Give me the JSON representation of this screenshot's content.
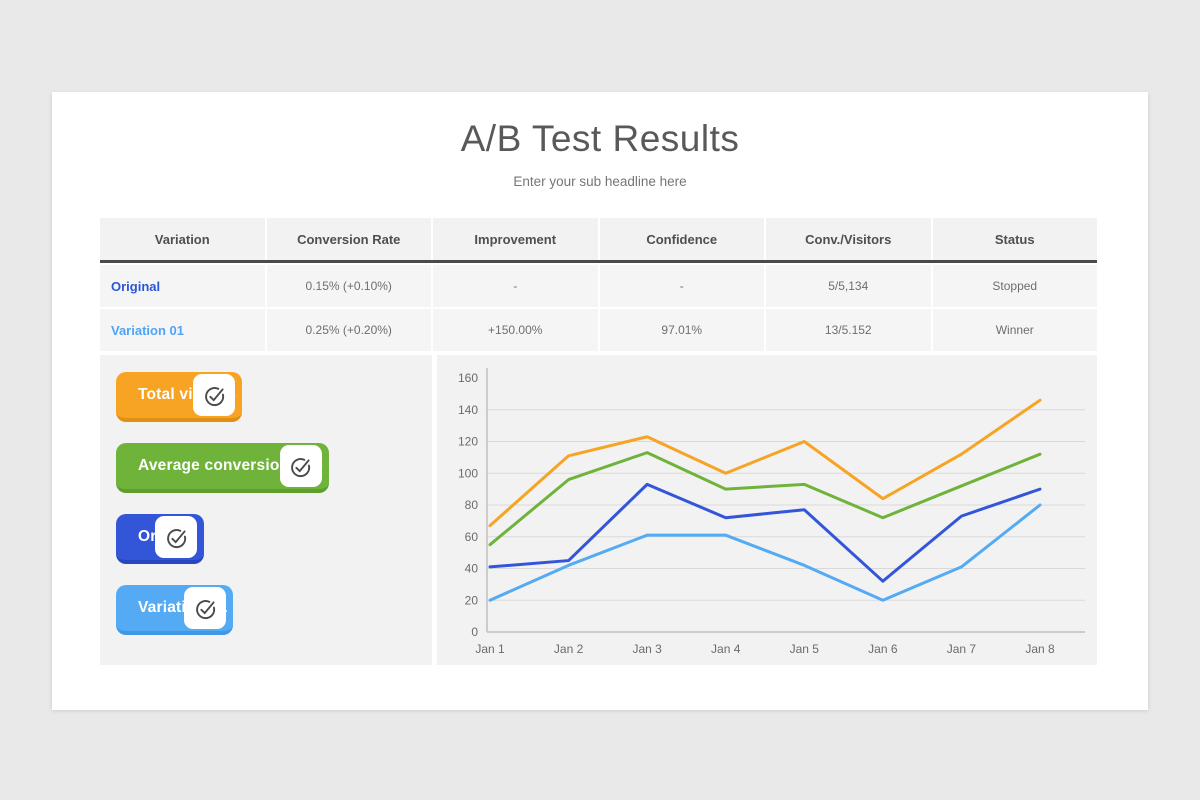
{
  "page": {
    "title": "A/B Test Results",
    "subtitle": "Enter your sub headline here"
  },
  "table": {
    "columns": [
      "Variation",
      "Conversion Rate",
      "Improvement",
      "Confidence",
      "Conv./Visitors",
      "Status"
    ],
    "rows": [
      {
        "variation": "Original",
        "variation_color": "#2b56d8",
        "cells": [
          "0.15% (+0.10%)",
          "-",
          "-",
          "5/5,134",
          "Stopped"
        ]
      },
      {
        "variation": "Variation 01",
        "variation_color": "#4ea5f5",
        "cells": [
          "0.25% (+0.20%)",
          "+150.00%",
          "97.01%",
          "13/5.152",
          "Winner"
        ]
      }
    ]
  },
  "legend": {
    "items": [
      {
        "label": "Total visitors",
        "color": "#f7a324",
        "edge": "#e18f12",
        "icon": "check-circle-icon"
      },
      {
        "label": "Average conversion rate",
        "color": "#6fb33b",
        "edge": "#5d9e2c",
        "icon": "check-circle-icon"
      },
      {
        "label": "Original",
        "color": "#3356d9",
        "edge": "#2846bf",
        "icon": "check-circle-icon"
      },
      {
        "label": "Variation 01",
        "color": "#55abf3",
        "edge": "#3f97e6",
        "icon": "check-circle-icon"
      }
    ]
  },
  "chart_data": {
    "type": "line",
    "x": [
      "Jan 1",
      "Jan 2",
      "Jan 3",
      "Jan 4",
      "Jan 5",
      "Jan 6",
      "Jan 7",
      "Jan 8"
    ],
    "series": [
      {
        "name": "Total visitors",
        "color": "#f7a324",
        "values": [
          67,
          111,
          123,
          100,
          120,
          84,
          112,
          146
        ]
      },
      {
        "name": "Average conversion rate",
        "color": "#6fb33b",
        "values": [
          55,
          96,
          113,
          90,
          93,
          72,
          92,
          112
        ]
      },
      {
        "name": "Original",
        "color": "#3356d9",
        "values": [
          41,
          45,
          93,
          72,
          77,
          32,
          73,
          90
        ]
      },
      {
        "name": "Variation 01",
        "color": "#55abf3",
        "values": [
          20,
          42,
          61,
          61,
          42,
          20,
          41,
          80
        ]
      }
    ],
    "ylim": [
      0,
      160
    ],
    "ytick_step": 20,
    "grid": true,
    "legend_position": "external-left-buttons",
    "colors": {
      "grid": "#d9d9d9",
      "axis": "#bfbfbf",
      "tick_text": "#6b6b6b"
    }
  }
}
